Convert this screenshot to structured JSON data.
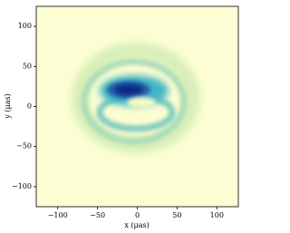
{
  "chart_data": {
    "type": "image",
    "x_label": "x (μas)",
    "y_label": "y (μas)",
    "xlim": [
      -127,
      127
    ],
    "ylim": [
      -125,
      125
    ],
    "xticks": [
      {
        "value": -100,
        "label": "−100"
      },
      {
        "value": -50,
        "label": "−50"
      },
      0,
      50,
      100
    ],
    "yticks": [
      {
        "value": -100,
        "label": "−100"
      },
      {
        "value": -50,
        "label": "−50"
      },
      0,
      50,
      100
    ],
    "background": "#fcfdd3"
  }
}
